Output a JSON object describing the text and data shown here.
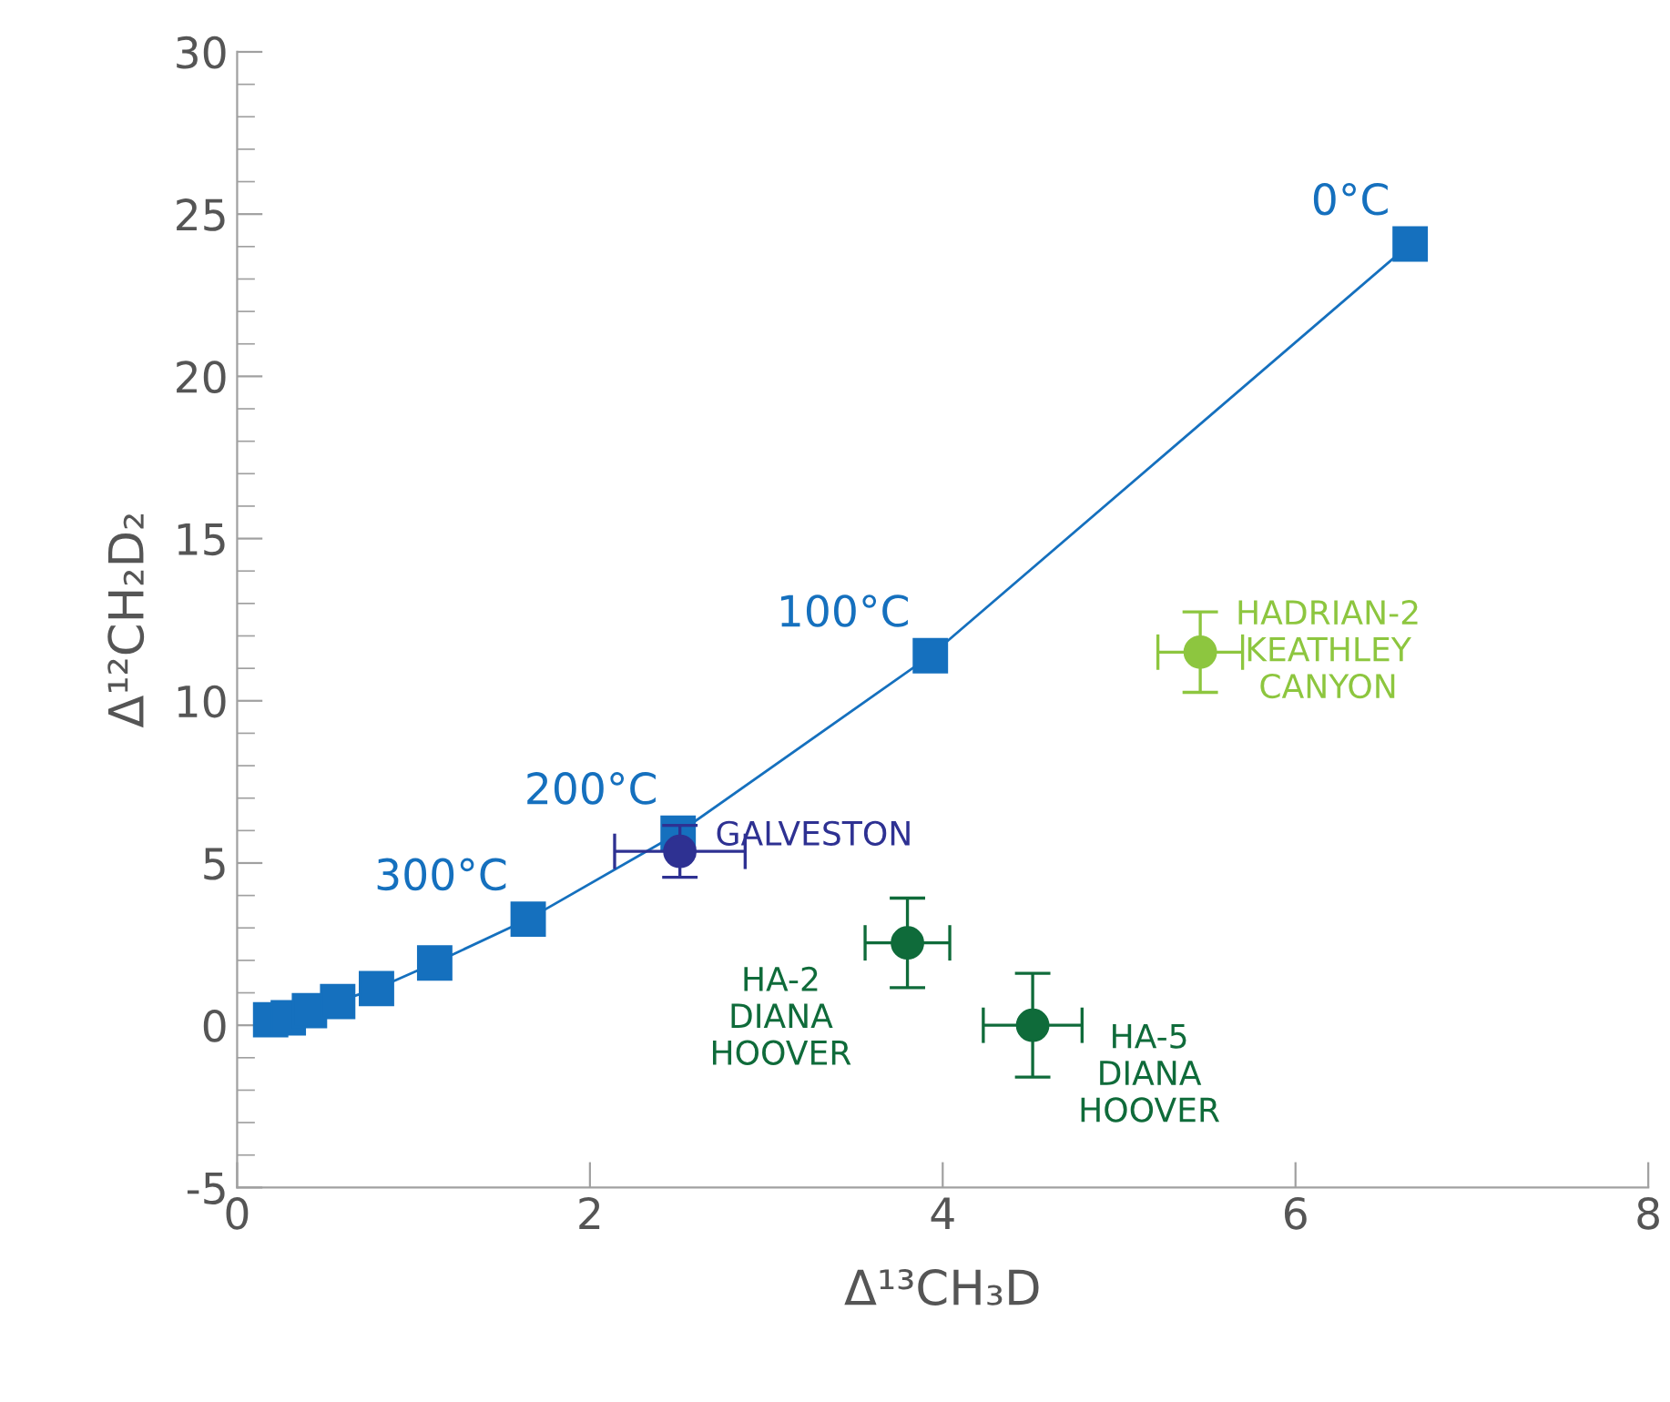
{
  "chart_data": {
    "type": "scatter",
    "xlabel": "Δ¹³CH₃D",
    "ylabel": "Δ¹²CH₂D₂",
    "xlim": [
      0,
      8
    ],
    "ylim": [
      -5,
      30
    ],
    "xticks": [
      0,
      2,
      4,
      6,
      8
    ],
    "yticks": [
      -5,
      0,
      5,
      10,
      15,
      20,
      25,
      30
    ],
    "grid": false,
    "legend": false,
    "series": [
      {
        "type": "line",
        "marker": "square",
        "color": "#1570be",
        "x": [
          0.19,
          0.29,
          0.41,
          0.57,
          0.79,
          1.12,
          1.65,
          2.5,
          3.93,
          6.65
        ],
        "values": [
          0.17,
          0.23,
          0.45,
          0.73,
          1.13,
          1.92,
          3.27,
          5.92,
          11.39,
          24.08
        ]
      },
      {
        "name": "GALVESTON",
        "marker": "circle",
        "color": "#2e3192",
        "x": [
          2.51
        ],
        "values": [
          5.36
        ],
        "errors": [
          0.8
        ],
        "xerrors": [
          0.37
        ]
      },
      {
        "name": "HADRIAN-2\nKEATHLEY\nCANYON",
        "marker": "circle",
        "color": "#8dc63f",
        "x": [
          5.46
        ],
        "values": [
          11.5
        ],
        "errors": [
          1.24
        ],
        "xerrors": [
          0.24
        ]
      },
      {
        "name": "HA-2\nDIANA\nHOOVER",
        "marker": "circle",
        "color": "#0f6b3a",
        "x": [
          3.8
        ],
        "values": [
          2.54
        ],
        "errors": [
          1.38
        ],
        "xerrors": [
          0.24
        ]
      },
      {
        "name": "HA-5\nDIANA\nHOOVER",
        "marker": "circle",
        "color": "#0f6b3a",
        "x": [
          4.51
        ],
        "values": [
          0
        ],
        "errors": [
          1.6
        ],
        "xerrors": [
          0.28
        ]
      }
    ],
    "annotations": [
      {
        "text": "0°C",
        "x": 6.65,
        "y": 24.08
      },
      {
        "text": "100°C",
        "x": 3.93,
        "y": 11.39
      },
      {
        "text": "200°C",
        "x": 2.5,
        "y": 5.92
      },
      {
        "text": "300°C",
        "x": 1.65,
        "y": 3.27
      }
    ]
  }
}
